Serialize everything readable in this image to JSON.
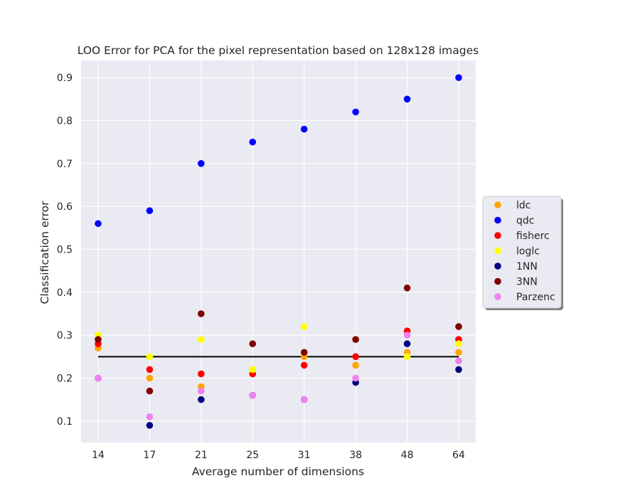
{
  "chart_data": {
    "type": "scatter",
    "title": "LOO Error for PCA for the pixel representation based on 128x128 images",
    "xlabel": "Average number of dimensions",
    "ylabel": "Classification error",
    "categories": [
      "14",
      "17",
      "21",
      "25",
      "31",
      "38",
      "48",
      "64"
    ],
    "ylim": [
      0.05,
      0.94
    ],
    "yticks": [
      "0.1",
      "0.2",
      "0.3",
      "0.4",
      "0.5",
      "0.6",
      "0.7",
      "0.8",
      "0.9"
    ],
    "grid": true,
    "legend_position": "center-right, outside plot",
    "reference_line": {
      "y": 0.25,
      "color": "#000000"
    },
    "series": [
      {
        "name": "ldc",
        "color": "#ffa500",
        "values": [
          0.27,
          0.2,
          0.18,
          0.21,
          0.25,
          0.23,
          0.26,
          0.26
        ]
      },
      {
        "name": "qdc",
        "color": "#0000ff",
        "values": [
          0.56,
          0.59,
          0.7,
          0.75,
          0.78,
          0.82,
          0.85,
          0.9
        ]
      },
      {
        "name": "fisherc",
        "color": "#ff0000",
        "values": [
          0.28,
          0.22,
          0.21,
          0.21,
          0.23,
          0.25,
          0.31,
          0.29
        ]
      },
      {
        "name": "loglc",
        "color": "#ffff00",
        "values": [
          0.3,
          0.25,
          0.29,
          0.22,
          0.32,
          0.29,
          0.25,
          0.28
        ]
      },
      {
        "name": "1NN",
        "color": "#00007f",
        "values": [
          0.2,
          0.09,
          0.15,
          0.16,
          0.15,
          0.19,
          0.28,
          0.22
        ]
      },
      {
        "name": "3NN",
        "color": "#7f0000",
        "values": [
          0.29,
          0.17,
          0.35,
          0.28,
          0.26,
          0.29,
          0.41,
          0.32
        ]
      },
      {
        "name": "Parzenc",
        "color": "#ee82ee",
        "values": [
          0.2,
          0.11,
          0.17,
          0.16,
          0.15,
          0.2,
          0.3,
          0.24
        ]
      }
    ]
  }
}
